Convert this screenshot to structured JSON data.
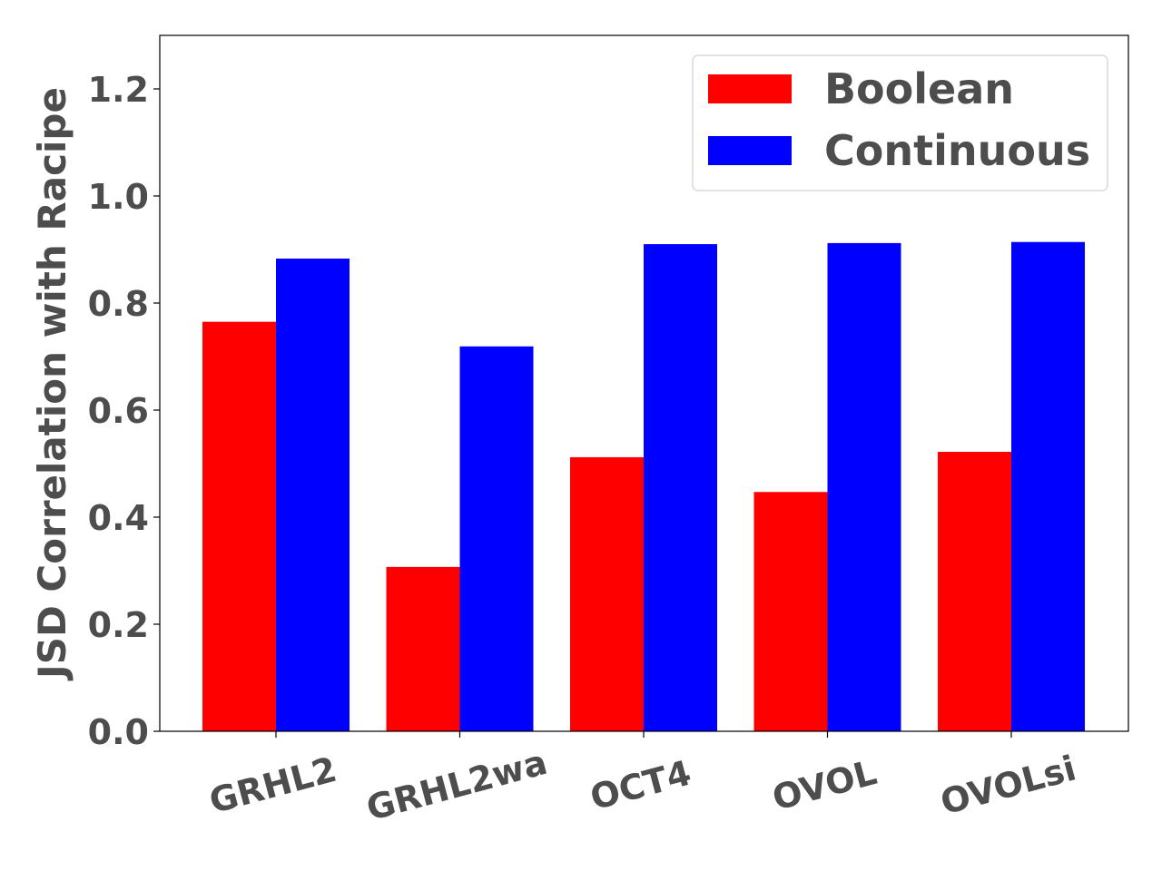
{
  "chart_data": {
    "type": "bar",
    "categories": [
      "GRHL2",
      "GRHL2wa",
      "OCT4",
      "OVOL",
      "OVOLsi"
    ],
    "series": [
      {
        "name": "Boolean",
        "color": "#ff0000",
        "values": [
          0.765,
          0.307,
          0.512,
          0.447,
          0.522
        ]
      },
      {
        "name": "Continuous",
        "color": "#0000ff",
        "values": [
          0.883,
          0.719,
          0.91,
          0.912,
          0.914
        ]
      }
    ],
    "ylabel": "JSD Correlation with Racipe",
    "xlabel": "",
    "ylim": [
      0,
      1.3
    ],
    "yticks": [
      "0.0",
      "0.2",
      "0.4",
      "0.6",
      "0.8",
      "1.0",
      "1.2"
    ],
    "legend_position": "top-right",
    "grid": false
  }
}
